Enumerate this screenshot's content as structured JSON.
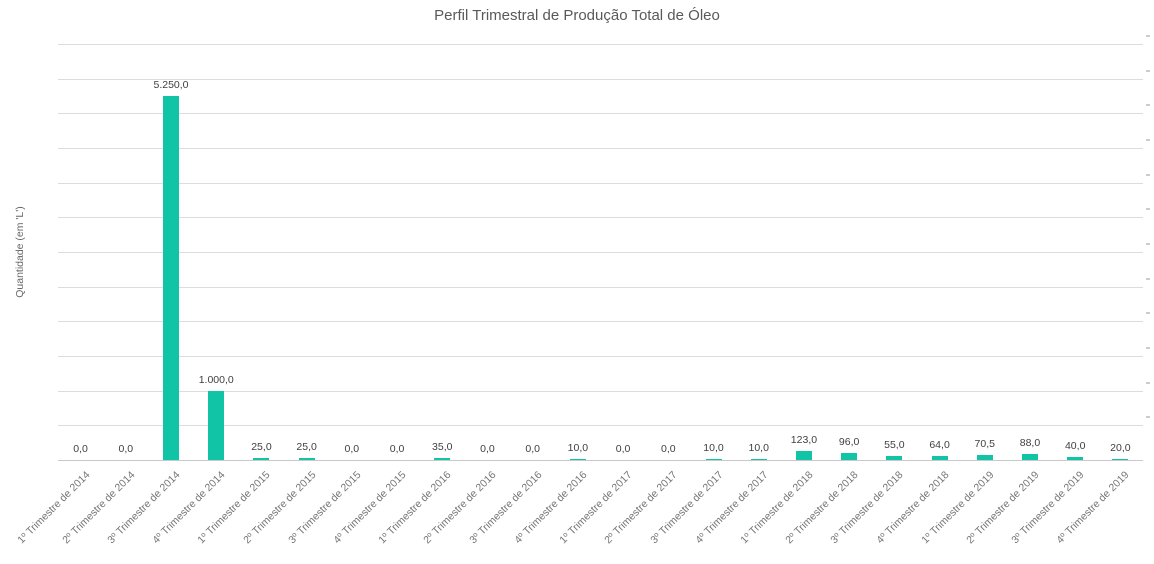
{
  "title": "Perfil Trimestral de Produção Total de Óleo",
  "y_axis_label": "Quantidade (em 'L')",
  "colors": {
    "bar": "#10C4A5",
    "title_text": "#595959",
    "axis_text": "#757575",
    "data_label_text": "#3F3F3F",
    "gridline": "#DCDCDC"
  },
  "chart_data": {
    "type": "bar",
    "title": "Perfil Trimestral de Produção Total de Óleo",
    "xlabel": "",
    "ylabel": "Quantidade (em 'L')",
    "ylim": [
      0,
      6000
    ],
    "gridline_step": 500,
    "grid": true,
    "legend": false,
    "y_tick_labels_visible": false,
    "categories": [
      "1º Trimestre de 2014",
      "2º Trimestre de 2014",
      "3º Trimestre de 2014",
      "4º Trimestre de 2014",
      "1º Trimestre de 2015",
      "2º Trimestre de 2015",
      "3º Trimestre de 2015",
      "4º Trimestre de 2015",
      "1º Trimestre de 2016",
      "2º Trimestre de 2016",
      "3º Trimestre de 2016",
      "4º Trimestre de 2016",
      "1º Trimestre de 2017",
      "2º Trimestre de 2017",
      "3º Trimestre de 2017",
      "4º Trimestre de 2017",
      "1º Trimestre de 2018",
      "2º Trimestre de 2018",
      "3º Trimestre de 2018",
      "4º Trimestre de 2018",
      "1º Trimestre de 2019",
      "2º Trimestre de 2019",
      "3º Trimestre de 2019",
      "4º Trimestre de 2019"
    ],
    "values": [
      0,
      0,
      5250,
      1000,
      25,
      25,
      0,
      0,
      35,
      0,
      0,
      10,
      0,
      0,
      10,
      10,
      123,
      96,
      55,
      64,
      70.5,
      88,
      40,
      20
    ],
    "value_labels": [
      "0,0",
      "0,0",
      "5.250,0",
      "1.000,0",
      "25,0",
      "25,0",
      "0,0",
      "0,0",
      "35,0",
      "0,0",
      "0,0",
      "10,0",
      "0,0",
      "0,0",
      "10,0",
      "10,0",
      "123,0",
      "96,0",
      "55,0",
      "64,0",
      "70,5",
      "88,0",
      "40,0",
      "20,0"
    ]
  }
}
